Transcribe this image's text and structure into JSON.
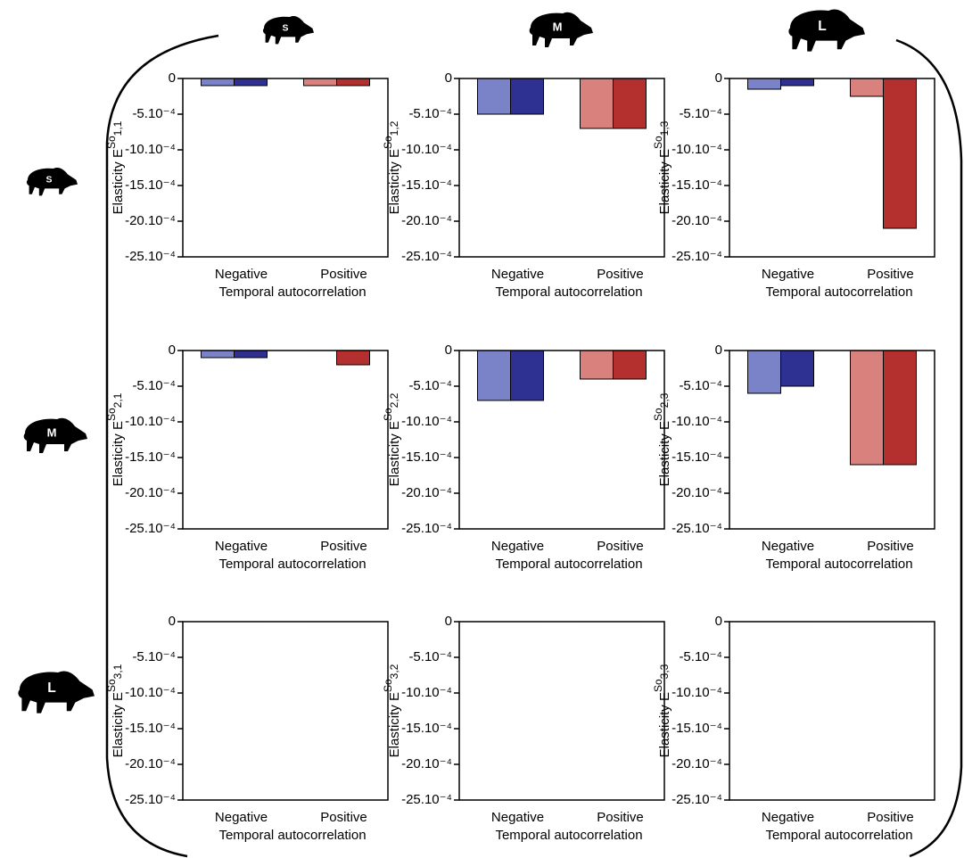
{
  "size_classes": [
    "S",
    "M",
    "L"
  ],
  "chart_data": [
    {
      "type": "bar",
      "ylabel": "Elasticity E",
      "ylabel_sup": "So",
      "ylabel_sub": "1,1",
      "xlabel": "Temporal autocorrelation",
      "categories": [
        "Negative",
        "Positive"
      ],
      "series": [
        {
          "colors": [
            "#7a82c8",
            "#d9817d"
          ],
          "values": [
            -0.0001,
            -0.0001
          ]
        },
        {
          "colors": [
            "#2e3192",
            "#b3302e"
          ],
          "values": [
            -0.0001,
            -0.0001
          ]
        }
      ],
      "ylim": [
        -0.0025,
        0
      ],
      "yticks": [
        0,
        {
          "value": -0.0005,
          "label": "-5.10⁻⁴"
        },
        {
          "value": -0.001,
          "label": "-10.10⁻⁴"
        },
        {
          "value": -0.0015,
          "label": "-15.10⁻⁴"
        },
        {
          "value": -0.002,
          "label": "-20.10⁻⁴"
        },
        {
          "value": -0.0025,
          "label": "-25.10⁻⁴"
        }
      ]
    },
    {
      "type": "bar",
      "ylabel": "Elasticity E",
      "ylabel_sup": "So",
      "ylabel_sub": "1,2",
      "xlabel": "Temporal autocorrelation",
      "categories": [
        "Negative",
        "Positive"
      ],
      "series": [
        {
          "colors": [
            "#7a82c8",
            "#d9817d"
          ],
          "values": [
            -0.0005,
            -0.0007
          ]
        },
        {
          "colors": [
            "#2e3192",
            "#b3302e"
          ],
          "values": [
            -0.0005,
            -0.0007
          ]
        }
      ],
      "ylim": [
        -0.0025,
        0
      ],
      "yticks": [
        0,
        {
          "value": -0.0005,
          "label": "-5.10⁻⁴"
        },
        {
          "value": -0.001,
          "label": "-10.10⁻⁴"
        },
        {
          "value": -0.0015,
          "label": "-15.10⁻⁴"
        },
        {
          "value": -0.002,
          "label": "-20.10⁻⁴"
        },
        {
          "value": -0.0025,
          "label": "-25.10⁻⁴"
        }
      ]
    },
    {
      "type": "bar",
      "ylabel": "Elasticity E",
      "ylabel_sup": "So",
      "ylabel_sub": "1,3",
      "xlabel": "Temporal autocorrelation",
      "categories": [
        "Negative",
        "Positive"
      ],
      "series": [
        {
          "colors": [
            "#7a82c8",
            "#d9817d"
          ],
          "values": [
            -0.00015,
            -0.00025
          ]
        },
        {
          "colors": [
            "#2e3192",
            "#b3302e"
          ],
          "values": [
            -0.0001,
            -0.0021
          ]
        }
      ],
      "ylim": [
        -0.0025,
        0
      ],
      "yticks": [
        0,
        {
          "value": -0.0005,
          "label": "-5.10⁻⁴"
        },
        {
          "value": -0.001,
          "label": "-10.10⁻⁴"
        },
        {
          "value": -0.0015,
          "label": "-15.10⁻⁴"
        },
        {
          "value": -0.002,
          "label": "-20.10⁻⁴"
        },
        {
          "value": -0.0025,
          "label": "-25.10⁻⁴"
        }
      ]
    },
    {
      "type": "bar",
      "ylabel": "Elasticity E",
      "ylabel_sup": "So",
      "ylabel_sub": "2,1",
      "xlabel": "Temporal autocorrelation",
      "categories": [
        "Negative",
        "Positive"
      ],
      "series": [
        {
          "colors": [
            "#7a82c8",
            "#d9817d"
          ],
          "values": [
            -0.0001,
            0
          ]
        },
        {
          "colors": [
            "#2e3192",
            "#b3302e"
          ],
          "values": [
            -0.0001,
            -0.0002
          ]
        }
      ],
      "ylim": [
        -0.0025,
        0
      ],
      "yticks": [
        0,
        {
          "value": -0.0005,
          "label": "-5.10⁻⁴"
        },
        {
          "value": -0.001,
          "label": "-10.10⁻⁴"
        },
        {
          "value": -0.0015,
          "label": "-15.10⁻⁴"
        },
        {
          "value": -0.002,
          "label": "-20.10⁻⁴"
        },
        {
          "value": -0.0025,
          "label": "-25.10⁻⁴"
        }
      ]
    },
    {
      "type": "bar",
      "ylabel": "Elasticity E",
      "ylabel_sup": "So",
      "ylabel_sub": "2,2",
      "xlabel": "Temporal autocorrelation",
      "categories": [
        "Negative",
        "Positive"
      ],
      "series": [
        {
          "colors": [
            "#7a82c8",
            "#d9817d"
          ],
          "values": [
            -0.0007,
            -0.0004
          ]
        },
        {
          "colors": [
            "#2e3192",
            "#b3302e"
          ],
          "values": [
            -0.0007,
            -0.0004
          ]
        }
      ],
      "ylim": [
        -0.0025,
        0
      ],
      "yticks": [
        0,
        {
          "value": -0.0005,
          "label": "-5.10⁻⁴"
        },
        {
          "value": -0.001,
          "label": "-10.10⁻⁴"
        },
        {
          "value": -0.0015,
          "label": "-15.10⁻⁴"
        },
        {
          "value": -0.002,
          "label": "-20.10⁻⁴"
        },
        {
          "value": -0.0025,
          "label": "-25.10⁻⁴"
        }
      ]
    },
    {
      "type": "bar",
      "ylabel": "Elasticity E",
      "ylabel_sup": "So",
      "ylabel_sub": "2,3",
      "xlabel": "Temporal autocorrelation",
      "categories": [
        "Negative",
        "Positive"
      ],
      "series": [
        {
          "colors": [
            "#7a82c8",
            "#d9817d"
          ],
          "values": [
            -0.0006,
            -0.0016
          ]
        },
        {
          "colors": [
            "#2e3192",
            "#b3302e"
          ],
          "values": [
            -0.0005,
            -0.0016
          ]
        }
      ],
      "ylim": [
        -0.0025,
        0
      ],
      "yticks": [
        0,
        {
          "value": -0.0005,
          "label": "-5.10⁻⁴"
        },
        {
          "value": -0.001,
          "label": "-10.10⁻⁴"
        },
        {
          "value": -0.0015,
          "label": "-15.10⁻⁴"
        },
        {
          "value": -0.002,
          "label": "-20.10⁻⁴"
        },
        {
          "value": -0.0025,
          "label": "-25.10⁻⁴"
        }
      ]
    },
    {
      "type": "bar",
      "ylabel": "Elasticity E",
      "ylabel_sup": "So",
      "ylabel_sub": "3,1",
      "xlabel": "Temporal autocorrelation",
      "categories": [
        "Negative",
        "Positive"
      ],
      "series": [
        {
          "colors": [
            "#7a82c8",
            "#d9817d"
          ],
          "values": [
            0,
            0
          ]
        },
        {
          "colors": [
            "#2e3192",
            "#b3302e"
          ],
          "values": [
            0,
            0
          ]
        }
      ],
      "ylim": [
        -0.0025,
        0
      ],
      "yticks": [
        0,
        {
          "value": -0.0005,
          "label": "-5.10⁻⁴"
        },
        {
          "value": -0.001,
          "label": "-10.10⁻⁴"
        },
        {
          "value": -0.0015,
          "label": "-15.10⁻⁴"
        },
        {
          "value": -0.002,
          "label": "-20.10⁻⁴"
        },
        {
          "value": -0.0025,
          "label": "-25.10⁻⁴"
        }
      ]
    },
    {
      "type": "bar",
      "ylabel": "Elasticity E",
      "ylabel_sup": "So",
      "ylabel_sub": "3,2",
      "xlabel": "Temporal autocorrelation",
      "categories": [
        "Negative",
        "Positive"
      ],
      "series": [
        {
          "colors": [
            "#7a82c8",
            "#d9817d"
          ],
          "values": [
            0,
            0
          ]
        },
        {
          "colors": [
            "#2e3192",
            "#b3302e"
          ],
          "values": [
            0,
            0
          ]
        }
      ],
      "ylim": [
        -0.0025,
        0
      ],
      "yticks": [
        0,
        {
          "value": -0.0005,
          "label": "-5.10⁻⁴"
        },
        {
          "value": -0.001,
          "label": "-10.10⁻⁴"
        },
        {
          "value": -0.0015,
          "label": "-15.10⁻⁴"
        },
        {
          "value": -0.002,
          "label": "-20.10⁻⁴"
        },
        {
          "value": -0.0025,
          "label": "-25.10⁻⁴"
        }
      ]
    },
    {
      "type": "bar",
      "ylabel": "Elasticity E",
      "ylabel_sup": "So",
      "ylabel_sub": "3,3",
      "xlabel": "Temporal autocorrelation",
      "categories": [
        "Negative",
        "Positive"
      ],
      "series": [
        {
          "colors": [
            "#7a82c8",
            "#d9817d"
          ],
          "values": [
            0,
            0
          ]
        },
        {
          "colors": [
            "#2e3192",
            "#b3302e"
          ],
          "values": [
            0,
            0
          ]
        }
      ],
      "ylim": [
        -0.0025,
        0
      ],
      "yticks": [
        0,
        {
          "value": -0.0005,
          "label": "-5.10⁻⁴"
        },
        {
          "value": -0.001,
          "label": "-10.10⁻⁴"
        },
        {
          "value": -0.0015,
          "label": "-15.10⁻⁴"
        },
        {
          "value": -0.002,
          "label": "-20.10⁻⁴"
        },
        {
          "value": -0.0025,
          "label": "-25.10⁻⁴"
        }
      ]
    }
  ]
}
